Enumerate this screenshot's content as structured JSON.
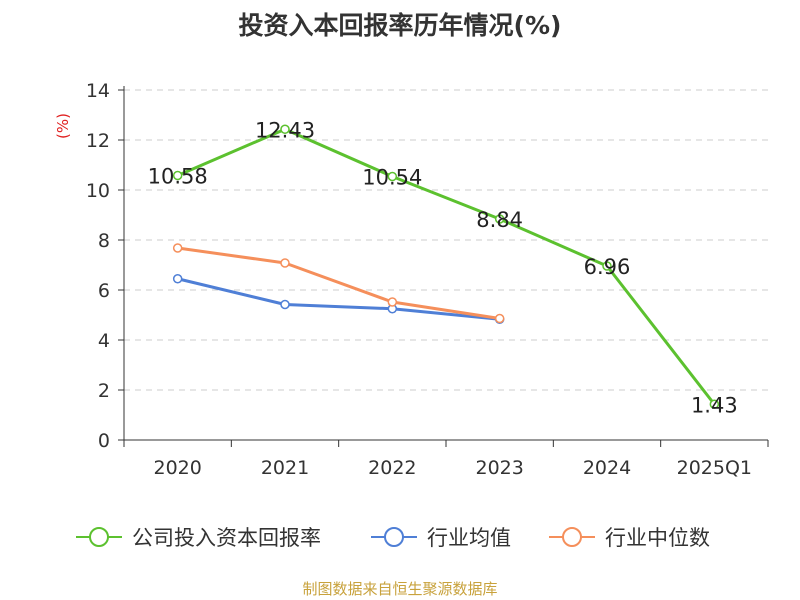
{
  "chart_data": {
    "type": "line",
    "title": "投资入本回报率历年情况(%)",
    "ylabel": "(%)",
    "xlabel": "",
    "ylim": [
      0,
      14
    ],
    "yticks": [
      0,
      2,
      4,
      6,
      8,
      10,
      12,
      14
    ],
    "grid": true,
    "legend_position": "bottom",
    "categories": [
      "2020",
      "2021",
      "2022",
      "2023",
      "2024",
      "2025Q1"
    ],
    "series": [
      {
        "name": "公司投入资本回报率",
        "color": "#5cc12f",
        "values": [
          10.58,
          12.43,
          10.54,
          8.84,
          6.96,
          1.43
        ],
        "labels": [
          "10.58",
          "12.43",
          "10.54",
          "8.84",
          "6.96",
          "1.43"
        ]
      },
      {
        "name": "行业均值",
        "color": "#4f7fd6",
        "values": [
          6.45,
          5.42,
          5.25,
          4.83,
          null,
          null
        ]
      },
      {
        "name": "行业中位数",
        "color": "#f58f5b",
        "values": [
          7.68,
          7.08,
          5.52,
          4.86,
          null,
          null
        ]
      }
    ]
  },
  "source": "制图数据来自恒生聚源数据库"
}
